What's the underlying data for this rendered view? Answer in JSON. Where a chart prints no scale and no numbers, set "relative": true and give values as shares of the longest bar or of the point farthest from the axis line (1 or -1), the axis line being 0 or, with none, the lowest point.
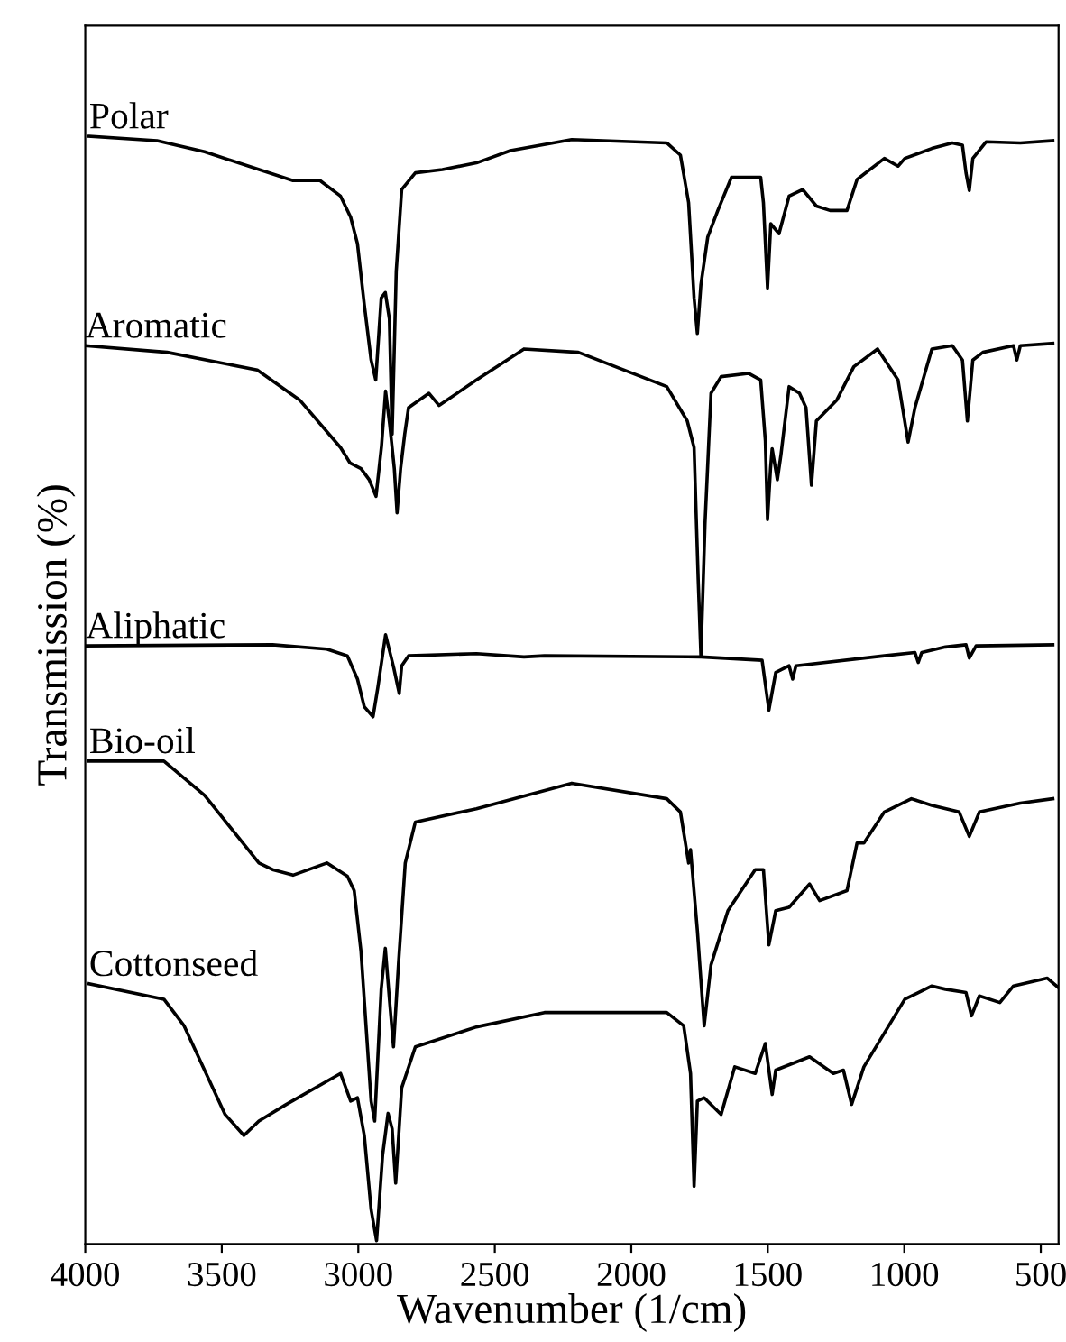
{
  "chart_data": {
    "type": "line",
    "relative": true,
    "xlabel": "Wavenumber (1/cm)",
    "ylabel": "Transmission (%)",
    "xlim": [
      4000,
      435
    ],
    "xticks": [
      4000,
      3500,
      3000,
      2500,
      2000,
      1500,
      1000,
      500
    ],
    "grid": false,
    "legend": false,
    "marker": "none",
    "line_style": "solid",
    "series": [
      {
        "name": "Polar",
        "color": "#000000",
        "x": [
          3986,
          3737,
          3563,
          3239,
          3140,
          3065,
          3028,
          3003,
          2978,
          2953,
          2936,
          2916,
          2901,
          2886,
          2876,
          2861,
          2841,
          2791,
          2692,
          2567,
          2443,
          2218,
          1870,
          1820,
          1790,
          1770,
          1758,
          1745,
          1720,
          1683,
          1633,
          1571,
          1526,
          1516,
          1501,
          1489,
          1459,
          1422,
          1372,
          1322,
          1272,
          1210,
          1173,
          1073,
          1023,
          998,
          899,
          824,
          787,
          774,
          762,
          749,
          700,
          575,
          456
        ],
        "values": [
          1.0,
          0.996,
          0.986,
          0.96,
          0.96,
          0.946,
          0.927,
          0.903,
          0.848,
          0.798,
          0.78,
          0.854,
          0.859,
          0.835,
          0.731,
          0.878,
          0.952,
          0.967,
          0.97,
          0.976,
          0.987,
          0.997,
          0.994,
          0.983,
          0.94,
          0.854,
          0.822,
          0.866,
          0.909,
          0.933,
          0.963,
          0.963,
          0.963,
          0.94,
          0.863,
          0.921,
          0.912,
          0.946,
          0.952,
          0.937,
          0.933,
          0.933,
          0.961,
          0.98,
          0.973,
          0.98,
          0.989,
          0.994,
          0.992,
          0.967,
          0.951,
          0.98,
          0.995,
          0.994,
          0.996
        ]
      },
      {
        "name": "Aromatic",
        "color": "#000000",
        "x": [
          4000,
          3700,
          3370,
          3215,
          3065,
          3030,
          2990,
          2960,
          2935,
          2915,
          2900,
          2885,
          2868,
          2858,
          2845,
          2830,
          2816,
          2741,
          2704,
          2567,
          2393,
          2194,
          1870,
          1795,
          1770,
          1755,
          1745,
          1730,
          1708,
          1671,
          1571,
          1526,
          1509,
          1501,
          1490,
          1484,
          1465,
          1452,
          1422,
          1384,
          1360,
          1340,
          1322,
          1247,
          1185,
          1098,
          1023,
          986,
          961,
          899,
          824,
          787,
          769,
          749,
          712,
          600,
          588,
          575,
          456
        ],
        "values": [
          0.811,
          0.805,
          0.789,
          0.762,
          0.719,
          0.705,
          0.7,
          0.69,
          0.675,
          0.72,
          0.77,
          0.74,
          0.7,
          0.66,
          0.7,
          0.731,
          0.755,
          0.768,
          0.757,
          0.78,
          0.808,
          0.805,
          0.774,
          0.743,
          0.719,
          0.6,
          0.531,
          0.65,
          0.768,
          0.783,
          0.786,
          0.78,
          0.725,
          0.654,
          0.7,
          0.718,
          0.69,
          0.712,
          0.774,
          0.768,
          0.755,
          0.685,
          0.743,
          0.762,
          0.792,
          0.808,
          0.78,
          0.724,
          0.755,
          0.808,
          0.811,
          0.798,
          0.743,
          0.798,
          0.805,
          0.811,
          0.798,
          0.811,
          0.813
        ]
      },
      {
        "name": "Aliphatic",
        "color": "#000000",
        "x": [
          3998,
          3314,
          3115,
          3040,
          3003,
          2978,
          2946,
          2928,
          2900,
          2870,
          2850,
          2841,
          2816,
          2567,
          2393,
          2318,
          1745,
          1521,
          1496,
          1471,
          1422,
          1409,
          1397,
          1073,
          961,
          949,
          936,
          849,
          774,
          762,
          737,
          456
        ],
        "values": [
          0.54,
          0.541,
          0.537,
          0.531,
          0.51,
          0.485,
          0.476,
          0.503,
          0.55,
          0.52,
          0.497,
          0.522,
          0.531,
          0.533,
          0.53,
          0.531,
          0.53,
          0.527,
          0.482,
          0.516,
          0.522,
          0.51,
          0.522,
          0.531,
          0.534,
          0.525,
          0.534,
          0.539,
          0.541,
          0.529,
          0.54,
          0.541
        ]
      },
      {
        "name": "Bio-oil",
        "color": "#000000",
        "x": [
          3986,
          3712,
          3563,
          3364,
          3314,
          3239,
          3115,
          3040,
          3015,
          2990,
          2953,
          2940,
          2916,
          2901,
          2886,
          2871,
          2853,
          2828,
          2791,
          2567,
          2218,
          1870,
          1820,
          1790,
          1783,
          1758,
          1733,
          1708,
          1646,
          1546,
          1516,
          1496,
          1471,
          1422,
          1347,
          1310,
          1210,
          1173,
          1148,
          1073,
          974,
          899,
          799,
          762,
          725,
          575,
          456
        ],
        "values": [
          0.436,
          0.436,
          0.405,
          0.344,
          0.338,
          0.333,
          0.344,
          0.332,
          0.319,
          0.264,
          0.129,
          0.111,
          0.23,
          0.267,
          0.221,
          0.178,
          0.252,
          0.344,
          0.381,
          0.393,
          0.416,
          0.402,
          0.39,
          0.344,
          0.356,
          0.283,
          0.197,
          0.252,
          0.301,
          0.338,
          0.338,
          0.27,
          0.301,
          0.304,
          0.325,
          0.31,
          0.319,
          0.362,
          0.362,
          0.39,
          0.402,
          0.396,
          0.39,
          0.368,
          0.39,
          0.398,
          0.402
        ]
      },
      {
        "name": "Cottonseed",
        "color": "#000000",
        "x": [
          3986,
          3712,
          3638,
          3488,
          3419,
          3364,
          3264,
          3065,
          3028,
          3003,
          2978,
          2953,
          2933,
          2911,
          2891,
          2876,
          2863,
          2841,
          2791,
          2567,
          2318,
          1870,
          1808,
          1783,
          1770,
          1758,
          1733,
          1671,
          1621,
          1546,
          1509,
          1484,
          1471,
          1347,
          1260,
          1223,
          1193,
          1148,
          998,
          899,
          849,
          774,
          754,
          725,
          650,
          600,
          476,
          438
        ],
        "values": [
          0.235,
          0.221,
          0.197,
          0.117,
          0.098,
          0.111,
          0.126,
          0.154,
          0.129,
          0.132,
          0.098,
          0.031,
          0.003,
          0.08,
          0.118,
          0.104,
          0.055,
          0.141,
          0.178,
          0.196,
          0.209,
          0.209,
          0.197,
          0.154,
          0.052,
          0.129,
          0.132,
          0.117,
          0.16,
          0.154,
          0.181,
          0.135,
          0.157,
          0.169,
          0.154,
          0.157,
          0.126,
          0.16,
          0.221,
          0.233,
          0.23,
          0.227,
          0.206,
          0.224,
          0.218,
          0.233,
          0.24,
          0.232
        ]
      }
    ]
  }
}
